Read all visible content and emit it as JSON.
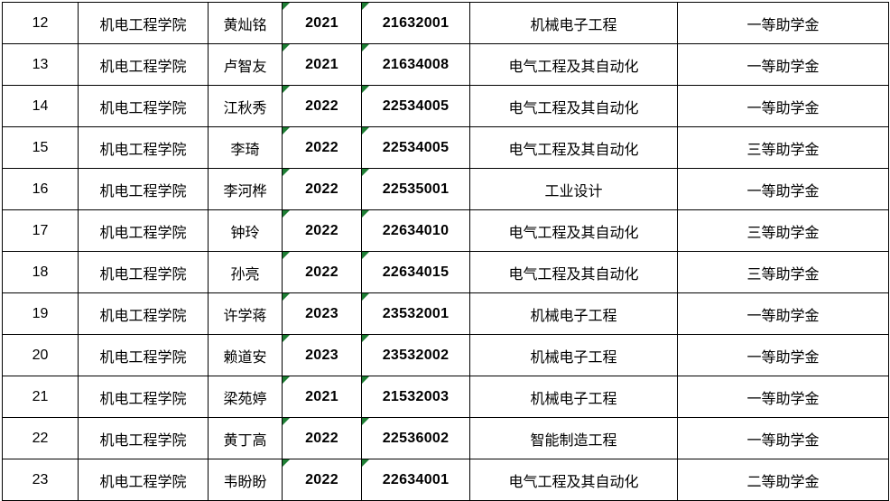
{
  "table": {
    "description": "scholarship-recipient-list",
    "marker_color": "#1e7e34",
    "grid_color": "#000000",
    "column_keys": [
      "index",
      "college",
      "name",
      "year",
      "student_id",
      "major",
      "award"
    ],
    "flag_columns": [
      "year",
      "student_id"
    ],
    "rows": [
      {
        "index": "12",
        "college": "机电工程学院",
        "name": "黄灿铭",
        "year": "2021",
        "student_id": "21632001",
        "major": "机械电子工程",
        "award": "一等助学金"
      },
      {
        "index": "13",
        "college": "机电工程学院",
        "name": "卢智友",
        "year": "2021",
        "student_id": "21634008",
        "major": "电气工程及其自动化",
        "award": "一等助学金"
      },
      {
        "index": "14",
        "college": "机电工程学院",
        "name": "江秋秀",
        "year": "2022",
        "student_id": "22534005",
        "major": "电气工程及其自动化",
        "award": "一等助学金"
      },
      {
        "index": "15",
        "college": "机电工程学院",
        "name": "李琦",
        "year": "2022",
        "student_id": "22534005",
        "major": "电气工程及其自动化",
        "award": "三等助学金"
      },
      {
        "index": "16",
        "college": "机电工程学院",
        "name": "李河桦",
        "year": "2022",
        "student_id": "22535001",
        "major": "工业设计",
        "award": "一等助学金"
      },
      {
        "index": "17",
        "college": "机电工程学院",
        "name": "钟玲",
        "year": "2022",
        "student_id": "22634010",
        "major": "电气工程及其自动化",
        "award": "三等助学金"
      },
      {
        "index": "18",
        "college": "机电工程学院",
        "name": "孙亮",
        "year": "2022",
        "student_id": "22634015",
        "major": "电气工程及其自动化",
        "award": "三等助学金"
      },
      {
        "index": "19",
        "college": "机电工程学院",
        "name": "许学蒋",
        "year": "2023",
        "student_id": "23532001",
        "major": "机械电子工程",
        "award": "一等助学金"
      },
      {
        "index": "20",
        "college": "机电工程学院",
        "name": "赖道安",
        "year": "2023",
        "student_id": "23532002",
        "major": "机械电子工程",
        "award": "一等助学金"
      },
      {
        "index": "21",
        "college": "机电工程学院",
        "name": "梁苑婷",
        "year": "2021",
        "student_id": "21532003",
        "major": "机械电子工程",
        "award": "一等助学金"
      },
      {
        "index": "22",
        "college": "机电工程学院",
        "name": "黄丁高",
        "year": "2022",
        "student_id": "22536002",
        "major": "智能制造工程",
        "award": "一等助学金"
      },
      {
        "index": "23",
        "college": "机电工程学院",
        "name": "韦盼盼",
        "year": "2022",
        "student_id": "22634001",
        "major": "电气工程及其自动化",
        "award": "二等助学金"
      }
    ]
  }
}
